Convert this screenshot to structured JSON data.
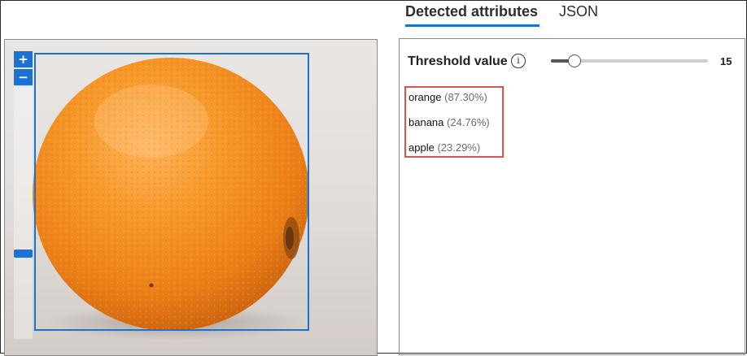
{
  "tabs": [
    {
      "label": "Detected attributes",
      "active": true
    },
    {
      "label": "JSON",
      "active": false
    }
  ],
  "viewer": {
    "zoom_in_label": "+",
    "zoom_out_label": "−",
    "zoom_level": 0.2,
    "bounding_box_color": "#1a73d4"
  },
  "threshold": {
    "label": "Threshold value",
    "info_icon": "info-icon",
    "value": 15,
    "max": 100,
    "display": "15"
  },
  "attributes": [
    {
      "name": "orange",
      "confidence": "(87.30%)"
    },
    {
      "name": "banana",
      "confidence": "(24.76%)"
    },
    {
      "name": "apple",
      "confidence": "(23.29%)"
    }
  ],
  "colors": {
    "accent": "#1a73d4",
    "highlight": "#e0524d"
  }
}
